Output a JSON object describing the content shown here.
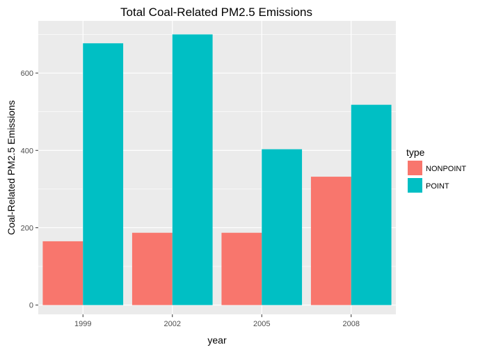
{
  "chart_data": {
    "type": "bar",
    "title": "Total Coal-Related PM2.5 Emissions",
    "xlabel": "year",
    "ylabel": "Coal-Related PM2.5 Emissions",
    "categories": [
      "1999",
      "2002",
      "2005",
      "2008"
    ],
    "series": [
      {
        "name": "NONPOINT",
        "color": "#F8766D",
        "values": [
          165,
          187,
          187,
          332
        ]
      },
      {
        "name": "POINT",
        "color": "#00BFC4",
        "values": [
          677,
          700,
          403,
          518
        ]
      }
    ],
    "ylim": [
      -24,
      735
    ],
    "yticks": [
      0,
      200,
      400,
      600
    ],
    "grid": true,
    "legend": {
      "title": "type",
      "position": "right"
    }
  }
}
